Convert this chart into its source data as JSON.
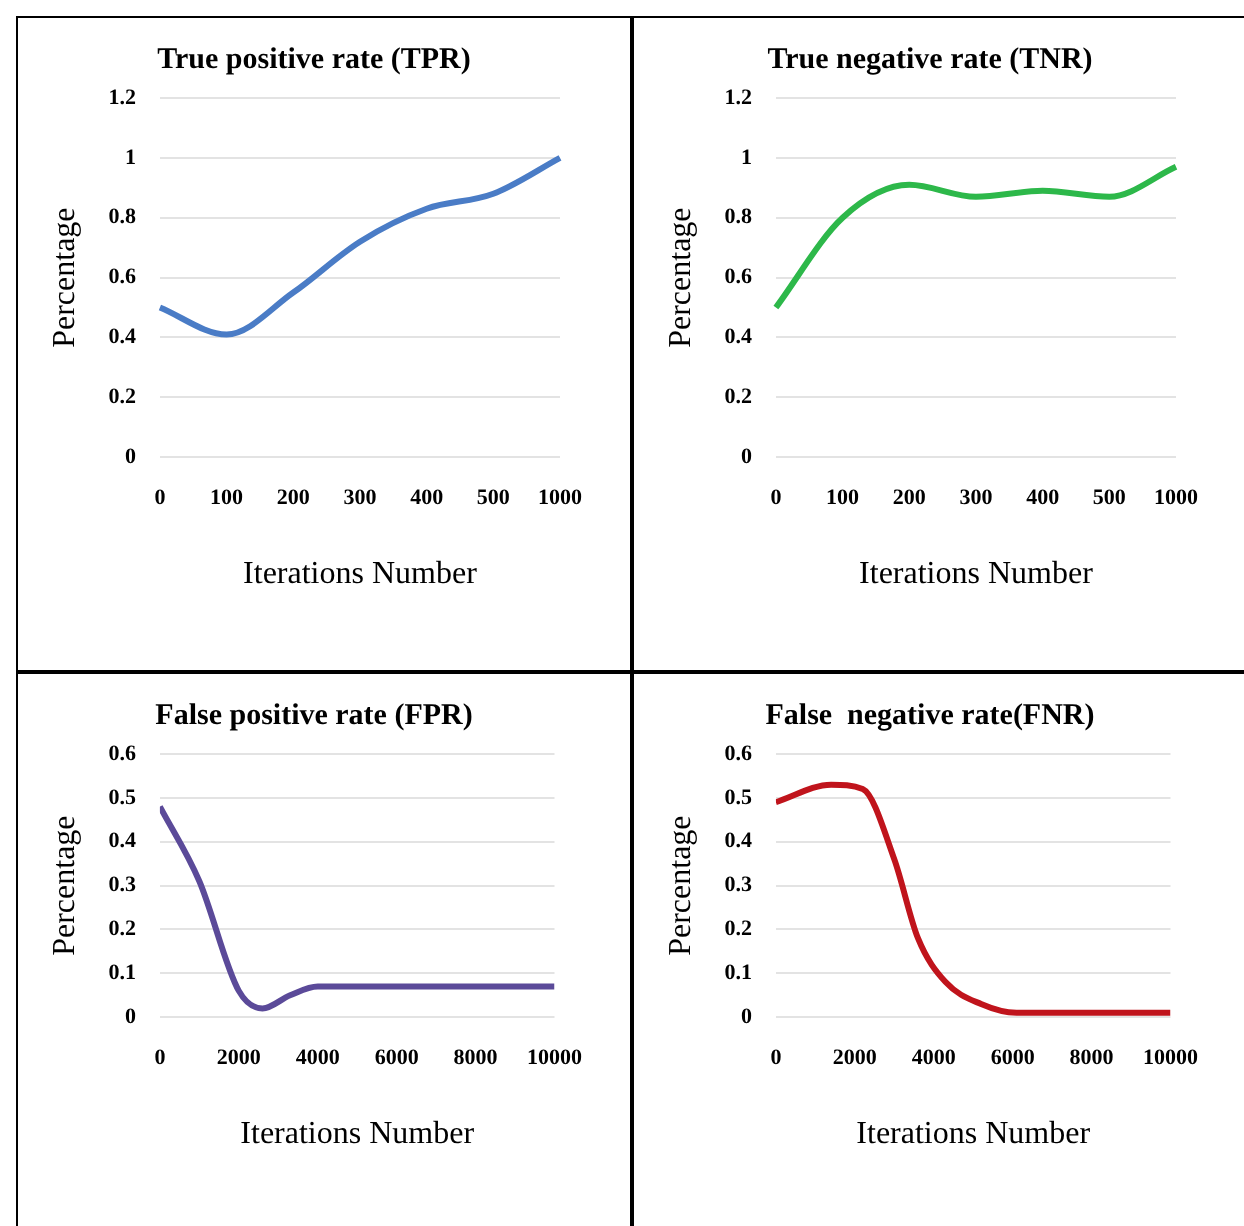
{
  "chart_data": [
    {
      "type": "line",
      "title": "True positive rate (TPR)",
      "xlabel": "Iterations Number",
      "ylabel": "Percentage",
      "categories": [
        "0",
        "100",
        "200",
        "300",
        "400",
        "500",
        "1000"
      ],
      "series": [
        {
          "color": "#4a7cc6",
          "values": [
            0.5,
            0.41,
            0.55,
            0.72,
            0.83,
            0.88,
            1.0
          ]
        }
      ],
      "ylim": [
        0,
        1.2
      ],
      "yticks": [
        0,
        0.2,
        0.4,
        0.6,
        0.8,
        1,
        1.2
      ],
      "grid": "y",
      "legend": false,
      "marker": "none"
    },
    {
      "type": "line",
      "title": "True negative rate (TNR)",
      "xlabel": "Iterations Number",
      "ylabel": "Percentage",
      "categories": [
        "0",
        "100",
        "200",
        "300",
        "400",
        "500",
        "1000"
      ],
      "series": [
        {
          "color": "#2db84a",
          "values": [
            0.5,
            0.8,
            0.91,
            0.87,
            0.89,
            0.87,
            0.97
          ]
        }
      ],
      "ylim": [
        0,
        1.2
      ],
      "yticks": [
        0,
        0.2,
        0.4,
        0.6,
        0.8,
        1,
        1.2
      ],
      "grid": "y",
      "legend": false,
      "marker": "none"
    },
    {
      "type": "line",
      "title": "False positive rate (FPR)",
      "xlabel": "Iterations Number",
      "ylabel": "Percentage",
      "series": [
        {
          "color": "#5b4a99",
          "x": [
            0,
            1000,
            2000,
            2600,
            3300,
            4000,
            6000,
            8000,
            10000
          ],
          "values": [
            0.48,
            0.31,
            0.06,
            0.02,
            0.05,
            0.07,
            0.07,
            0.07,
            0.07
          ]
        }
      ],
      "xlim": [
        0,
        10000
      ],
      "xticks": [
        0,
        2000,
        4000,
        6000,
        8000,
        10000
      ],
      "ylim": [
        0,
        0.6
      ],
      "yticks": [
        0,
        0.1,
        0.2,
        0.3,
        0.4,
        0.5,
        0.6
      ],
      "grid": "y",
      "legend": false,
      "marker": "none"
    },
    {
      "type": "line",
      "title": "False  negative rate(FNR)",
      "xlabel": "Iterations Number",
      "ylabel": "Percentage",
      "series": [
        {
          "color": "#c0141c",
          "x": [
            0,
            1400,
            2200,
            3000,
            3600,
            4300,
            5200,
            6100,
            8000,
            10000
          ],
          "values": [
            0.49,
            0.53,
            0.52,
            0.36,
            0.18,
            0.08,
            0.03,
            0.01,
            0.01,
            0.01
          ]
        }
      ],
      "xlim": [
        0,
        10000
      ],
      "xticks": [
        0,
        2000,
        4000,
        6000,
        8000,
        10000
      ],
      "ylim": [
        0,
        0.6
      ],
      "yticks": [
        0,
        0.1,
        0.2,
        0.3,
        0.4,
        0.5,
        0.6
      ],
      "grid": "y",
      "legend": false,
      "marker": "none"
    }
  ]
}
